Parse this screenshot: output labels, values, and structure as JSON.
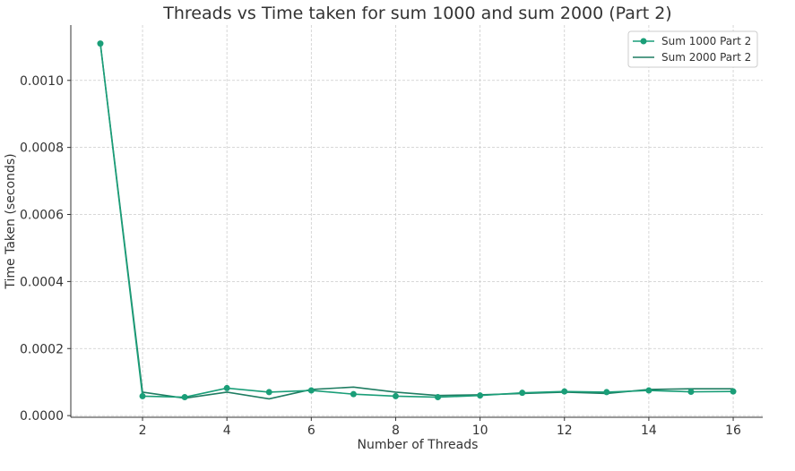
{
  "chart_data": {
    "type": "line",
    "title": "Threads vs Time taken for sum 1000 and sum 2000 (Part 2)",
    "xlabel": "Number of Threads",
    "ylabel": "Time Taken (seconds)",
    "xlim": [
      0.3,
      16.7
    ],
    "ylim": [
      -5e-06,
      0.001165
    ],
    "xticks": [
      2,
      4,
      6,
      8,
      10,
      12,
      14,
      16
    ],
    "xtick_labels": [
      "2",
      "4",
      "6",
      "8",
      "10",
      "12",
      "14",
      "16"
    ],
    "yticks": [
      0.0,
      0.0002,
      0.0004,
      0.0006,
      0.0008,
      0.001
    ],
    "ytick_labels": [
      "0.0000",
      "0.0002",
      "0.0004",
      "0.0006",
      "0.0008",
      "0.0010"
    ],
    "grid": true,
    "legend_position": "top-right",
    "x": [
      1,
      2,
      3,
      4,
      5,
      6,
      7,
      8,
      9,
      10,
      11,
      12,
      13,
      14,
      15,
      16
    ],
    "series": [
      {
        "name": "Sum 1000 Part 2",
        "color": "#1a9e78",
        "marker": "circle",
        "values": [
          0.00111,
          5.8e-05,
          5.5e-05,
          8.2e-05,
          7e-05,
          7.5e-05,
          6.4e-05,
          5.8e-05,
          5.5e-05,
          6e-05,
          6.8e-05,
          7.2e-05,
          7e-05,
          7.5e-05,
          7.1e-05,
          7.2e-05
        ]
      },
      {
        "name": "Sum 2000 Part 2",
        "color": "#1f7d62",
        "marker": "none",
        "values": [
          0.00111,
          7e-05,
          5.2e-05,
          7e-05,
          5e-05,
          7.8e-05,
          8.5e-05,
          7e-05,
          6e-05,
          6.2e-05,
          6.6e-05,
          7e-05,
          6.6e-05,
          7.8e-05,
          8e-05,
          8e-05
        ]
      }
    ]
  }
}
